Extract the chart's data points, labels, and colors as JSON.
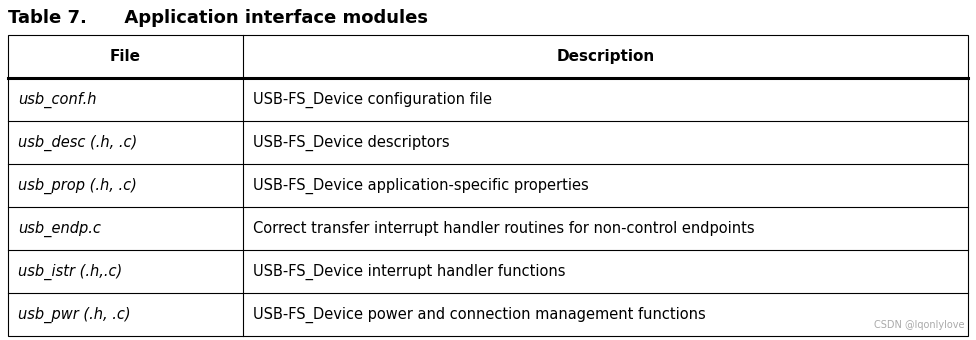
{
  "title": "Table 7.      Application interface modules",
  "header": [
    "File",
    "Description"
  ],
  "rows": [
    [
      "usb_conf.h",
      "USB-FS_Device configuration file"
    ],
    [
      "usb_desc (.h, .c)",
      "USB-FS_Device descriptors"
    ],
    [
      "usb_prop (.h, .c)",
      "USB-FS_Device application-specific properties"
    ],
    [
      "usb_endp.c",
      "Correct transfer interrupt handler routines for non-control endpoints"
    ],
    [
      "usb_istr (.h,.c)",
      "USB-FS_Device interrupt handler functions"
    ],
    [
      "usb_pwr (.h, .c)",
      "USB-FS_Device power and connection management functions"
    ]
  ],
  "col_split": 0.245,
  "background_color": "#ffffff",
  "border_color": "#000000",
  "title_fontsize": 13,
  "header_fontsize": 11,
  "cell_fontsize": 10.5,
  "watermark": "CSDN @lqonlylove",
  "thick_line_lw": 2.2,
  "thin_line_lw": 0.8
}
